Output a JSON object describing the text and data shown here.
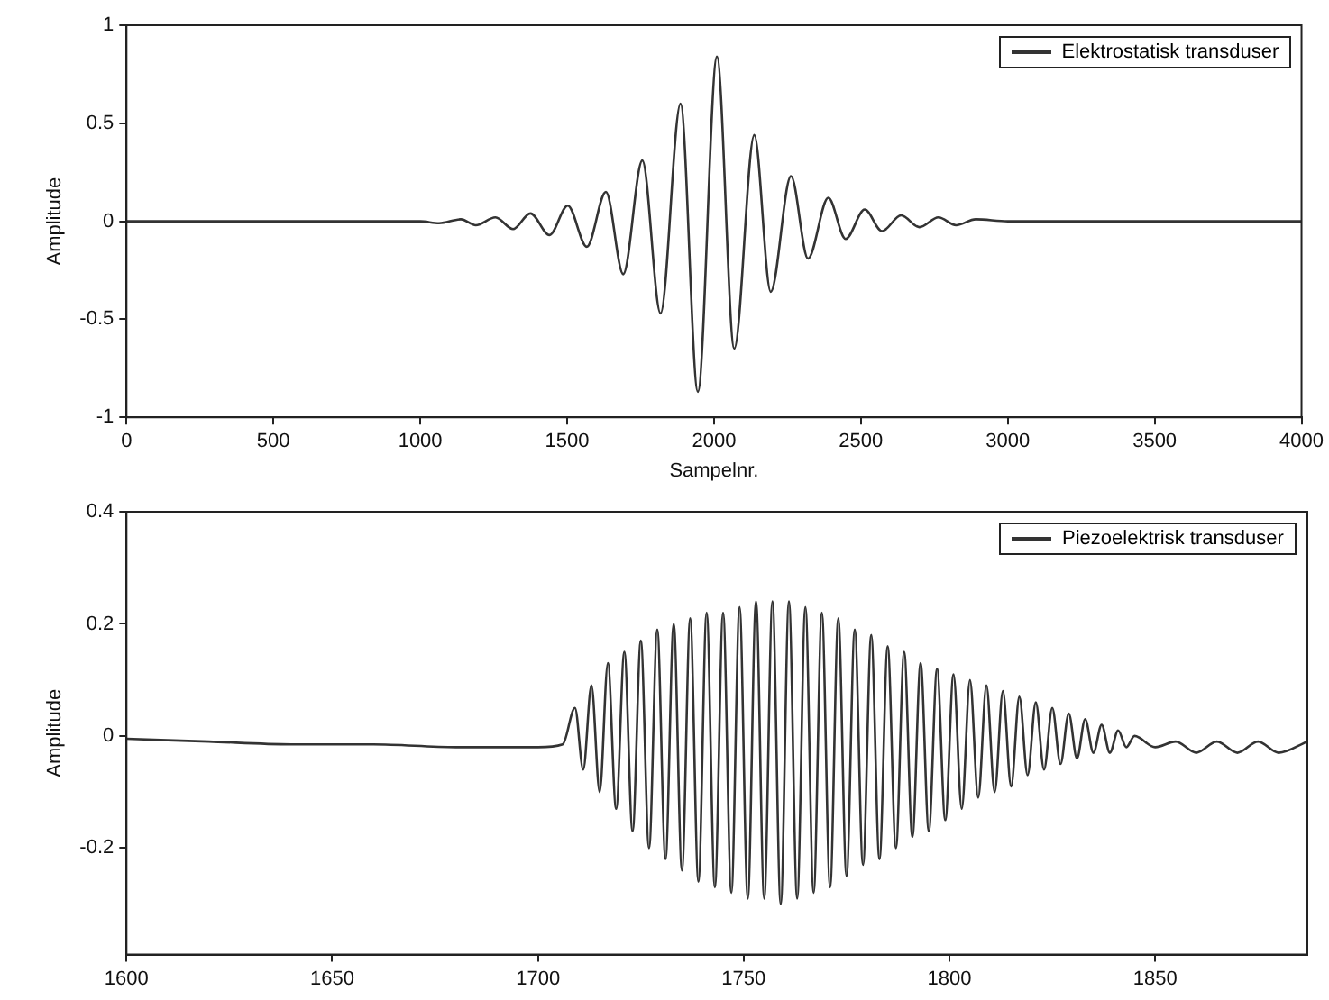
{
  "chart_data": [
    {
      "type": "line",
      "xlabel": "Sampelnr.",
      "ylabel": "Amplitude",
      "xlim": [
        0,
        4000
      ],
      "ylim": [
        -1,
        1
      ],
      "xticks": [
        0,
        500,
        1000,
        1500,
        2000,
        2500,
        3000,
        3500,
        4000
      ],
      "yticks": [
        -1,
        -0.5,
        0,
        0.5,
        1
      ],
      "grid": false,
      "legend": "top right",
      "marker": "none",
      "line_style": "solid",
      "series": [
        {
          "name": "Elektrostatisk transduser",
          "color": "#333333",
          "x": [
            0,
            1000,
            1064,
            1138,
            1189,
            1256,
            1316,
            1375,
            1440,
            1502,
            1567,
            1632,
            1691,
            1756,
            1818,
            1886,
            1945,
            2010,
            2069,
            2137,
            2193,
            2262,
            2320,
            2389,
            2448,
            2513,
            2572,
            2637,
            2699,
            2764,
            2824,
            2891,
            3000,
            4000
          ],
          "values": [
            0,
            0,
            -0.01,
            0.01,
            -0.02,
            0.02,
            -0.04,
            0.04,
            -0.07,
            0.08,
            -0.13,
            0.15,
            -0.27,
            0.31,
            -0.47,
            0.6,
            -0.87,
            0.84,
            -0.65,
            0.44,
            -0.36,
            0.23,
            -0.19,
            0.12,
            -0.09,
            0.06,
            -0.05,
            0.03,
            -0.03,
            0.02,
            -0.02,
            0.01,
            0,
            0
          ]
        }
      ]
    },
    {
      "type": "line",
      "ylabel": "Amplitude",
      "xlim": [
        1600,
        1887
      ],
      "ylim": [
        -0.39,
        0.4
      ],
      "xticks": [
        1600,
        1650,
        1700,
        1750,
        1800,
        1850
      ],
      "yticks": [
        -0.2,
        0,
        0.2,
        0.4
      ],
      "grid": false,
      "legend": "top right",
      "marker": "none",
      "line_style": "solid",
      "series": [
        {
          "name": "Piezoelektrisk transduser",
          "color": "#333333",
          "x": [
            1600,
            1620,
            1640,
            1660,
            1680,
            1700,
            1706,
            1709,
            1711,
            1713,
            1715,
            1717,
            1719,
            1721,
            1723,
            1725,
            1727,
            1729,
            1731,
            1733,
            1735,
            1737,
            1739,
            1741,
            1743,
            1745,
            1747,
            1749,
            1751,
            1753,
            1755,
            1757,
            1759,
            1761,
            1763,
            1765,
            1767,
            1769,
            1771,
            1773,
            1775,
            1777,
            1779,
            1781,
            1783,
            1785,
            1787,
            1789,
            1791,
            1793,
            1795,
            1797,
            1799,
            1801,
            1803,
            1805,
            1807,
            1809,
            1811,
            1813,
            1815,
            1817,
            1819,
            1821,
            1823,
            1825,
            1827,
            1829,
            1831,
            1833,
            1835,
            1837,
            1839,
            1841,
            1843,
            1845,
            1850,
            1855,
            1860,
            1865,
            1870,
            1875,
            1880,
            1887
          ],
          "values": [
            -0.005,
            -0.01,
            -0.015,
            -0.015,
            -0.02,
            -0.02,
            -0.015,
            0.05,
            -0.06,
            0.09,
            -0.1,
            0.13,
            -0.13,
            0.15,
            -0.17,
            0.17,
            -0.2,
            0.19,
            -0.22,
            0.2,
            -0.24,
            0.21,
            -0.26,
            0.22,
            -0.27,
            0.22,
            -0.28,
            0.23,
            -0.29,
            0.24,
            -0.29,
            0.24,
            -0.3,
            0.24,
            -0.29,
            0.23,
            -0.28,
            0.22,
            -0.27,
            0.21,
            -0.25,
            0.19,
            -0.23,
            0.18,
            -0.22,
            0.16,
            -0.2,
            0.15,
            -0.18,
            0.13,
            -0.17,
            0.12,
            -0.15,
            0.11,
            -0.13,
            0.1,
            -0.11,
            0.09,
            -0.1,
            0.08,
            -0.09,
            0.07,
            -0.07,
            0.06,
            -0.06,
            0.05,
            -0.05,
            0.04,
            -0.04,
            0.03,
            -0.03,
            0.02,
            -0.03,
            0.01,
            -0.02,
            0,
            -0.02,
            -0.01,
            -0.03,
            -0.01,
            -0.03,
            -0.01,
            -0.03,
            -0.01
          ]
        }
      ]
    }
  ]
}
